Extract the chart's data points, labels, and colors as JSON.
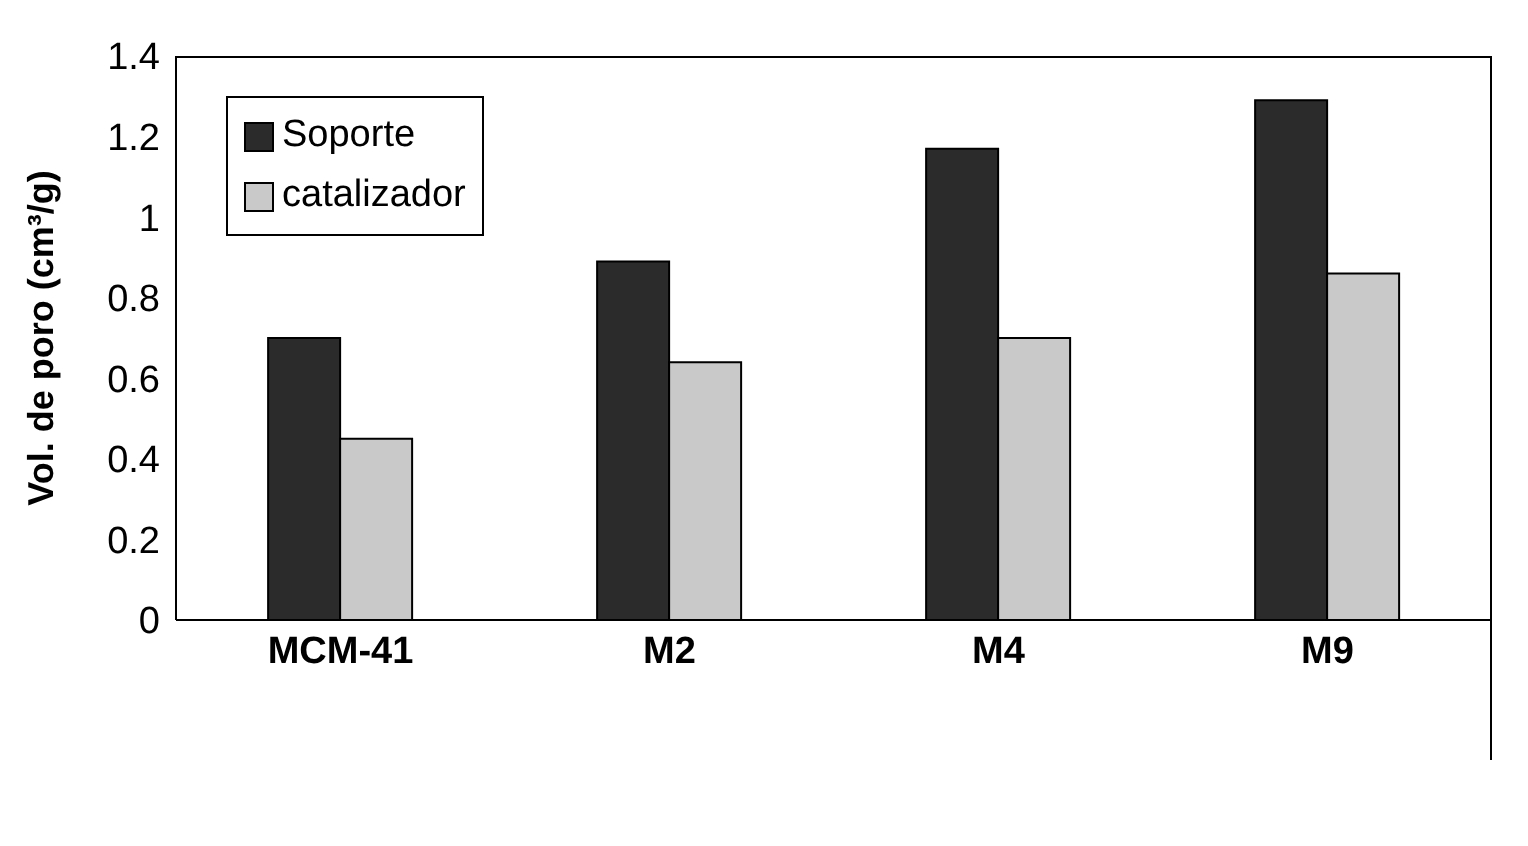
{
  "chart_data": {
    "type": "bar",
    "ylabel": "Vol. de poro (cm³/g)",
    "categories": [
      "MCM-41",
      "M2",
      "M4",
      "M9"
    ],
    "series": [
      {
        "name": "Soporte",
        "color": "#2b2b2b",
        "values": [
          0.7,
          0.89,
          1.17,
          1.29
        ]
      },
      {
        "name": "catalizador",
        "color": "#c9c9c9",
        "values": [
          0.45,
          0.64,
          0.7,
          0.86
        ]
      }
    ],
    "ylim": [
      0,
      1.4
    ],
    "yticks": [
      0,
      0.2,
      0.4,
      0.6,
      0.8,
      1,
      1.2,
      1.4
    ],
    "grid": false,
    "legend": "top left"
  }
}
